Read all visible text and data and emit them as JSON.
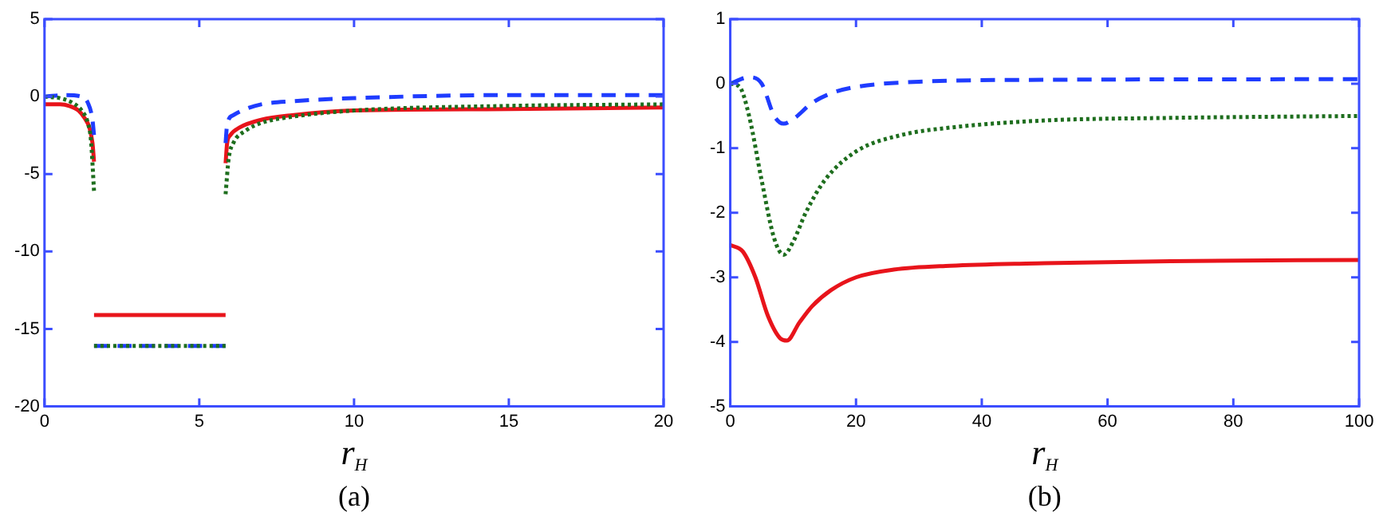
{
  "chart_data": [
    {
      "type": "line",
      "xlabel": "r$_{H}$",
      "annotations": [
        "(a)"
      ],
      "xlim": [
        0,
        20
      ],
      "ylim": [
        -20,
        5
      ],
      "xticks": [
        0,
        5,
        10,
        15,
        20
      ],
      "yticks": [
        -20,
        -15,
        -10,
        -5,
        0,
        5
      ],
      "grid": false,
      "legend": false,
      "series": [
        {
          "color": "#e8141b",
          "line_style": "solid",
          "x": [
            0,
            0.5,
            0.8,
            1.1,
            1.3,
            1.45,
            1.55,
            1.6
          ],
          "values": [
            -0.5,
            -0.5,
            -0.6,
            -0.9,
            -1.4,
            -2.0,
            -3.0,
            -4.2
          ]
        },
        {
          "color": "#e8141b",
          "line_style": "solid",
          "x": [
            1.6,
            5.85
          ],
          "values": [
            -14.1,
            -14.1
          ]
        },
        {
          "color": "#e8141b",
          "line_style": "solid",
          "x": [
            5.85,
            5.9,
            6.0,
            6.3,
            7,
            8,
            10,
            15,
            20
          ],
          "values": [
            -4.3,
            -3.0,
            -2.5,
            -2.0,
            -1.5,
            -1.2,
            -0.9,
            -0.8,
            -0.7
          ]
        },
        {
          "color": "#1f3cff",
          "line_style": "dashed",
          "x": [
            0,
            0.7,
            1.2,
            1.4,
            1.55,
            1.6
          ],
          "values": [
            0,
            0.1,
            0,
            -0.4,
            -1.5,
            -2.5
          ]
        },
        {
          "color": "#1f3cff",
          "line_style": "dashed",
          "x": [
            1.6,
            5.85
          ],
          "values": [
            -16.1,
            -16.1
          ]
        },
        {
          "color": "#1f3cff",
          "line_style": "dashed",
          "x": [
            5.85,
            5.9,
            6.1,
            6.5,
            7,
            8,
            10,
            15,
            20
          ],
          "values": [
            -3.0,
            -1.8,
            -1.2,
            -0.8,
            -0.5,
            -0.3,
            -0.1,
            0.1,
            0.1
          ]
        },
        {
          "color": "#1e6e1e",
          "line_style": "dotted",
          "x": [
            0,
            0.5,
            0.9,
            1.2,
            1.4,
            1.5,
            1.6
          ],
          "values": [
            0,
            -0.1,
            -0.4,
            -0.9,
            -1.7,
            -2.8,
            -6.1
          ]
        },
        {
          "color": "#1e6e1e",
          "line_style": "dotted",
          "x": [
            1.6,
            5.85
          ],
          "values": [
            -16.1,
            -16.1
          ]
        },
        {
          "color": "#1e6e1e",
          "line_style": "dotted",
          "x": [
            5.85,
            5.95,
            6.1,
            6.5,
            7,
            8,
            10,
            15,
            20
          ],
          "values": [
            -6.3,
            -4,
            -3,
            -2.2,
            -1.7,
            -1.3,
            -0.9,
            -0.6,
            -0.5
          ]
        }
      ]
    },
    {
      "type": "line",
      "xlabel": "r$_{H}$",
      "annotations": [
        "(b)"
      ],
      "xlim": [
        0,
        100
      ],
      "ylim": [
        -5,
        1
      ],
      "xticks": [
        0,
        20,
        40,
        60,
        80,
        100
      ],
      "yticks": [
        -5,
        -4,
        -3,
        -2,
        -1,
        0,
        1
      ],
      "grid": false,
      "legend": false,
      "series": [
        {
          "color": "#e8141b",
          "line_style": "solid",
          "x": [
            0,
            2,
            4,
            6,
            8,
            9,
            11,
            13,
            16,
            20,
            26,
            35,
            50,
            70,
            100
          ],
          "values": [
            -2.5,
            -2.6,
            -3.0,
            -3.6,
            -3.95,
            -3.98,
            -3.7,
            -3.45,
            -3.2,
            -3.0,
            -2.88,
            -2.82,
            -2.78,
            -2.75,
            -2.73
          ]
        },
        {
          "color": "#1f3cff",
          "line_style": "dashed",
          "x": [
            0,
            3,
            5,
            7,
            8.5,
            10,
            13,
            16,
            20,
            30,
            50,
            100
          ],
          "values": [
            0,
            0.1,
            0,
            -0.5,
            -0.62,
            -0.55,
            -0.3,
            -0.15,
            -0.05,
            0.03,
            0.06,
            0.07
          ]
        },
        {
          "color": "#1e6e1e",
          "line_style": "dotted",
          "x": [
            0,
            1.5,
            3,
            5,
            7,
            8.5,
            10,
            12,
            15,
            20,
            27,
            35,
            50,
            70,
            100
          ],
          "values": [
            0,
            -0.05,
            -0.5,
            -1.5,
            -2.4,
            -2.65,
            -2.45,
            -2.0,
            -1.5,
            -1.05,
            -0.8,
            -0.68,
            -0.57,
            -0.53,
            -0.5
          ]
        }
      ]
    }
  ]
}
